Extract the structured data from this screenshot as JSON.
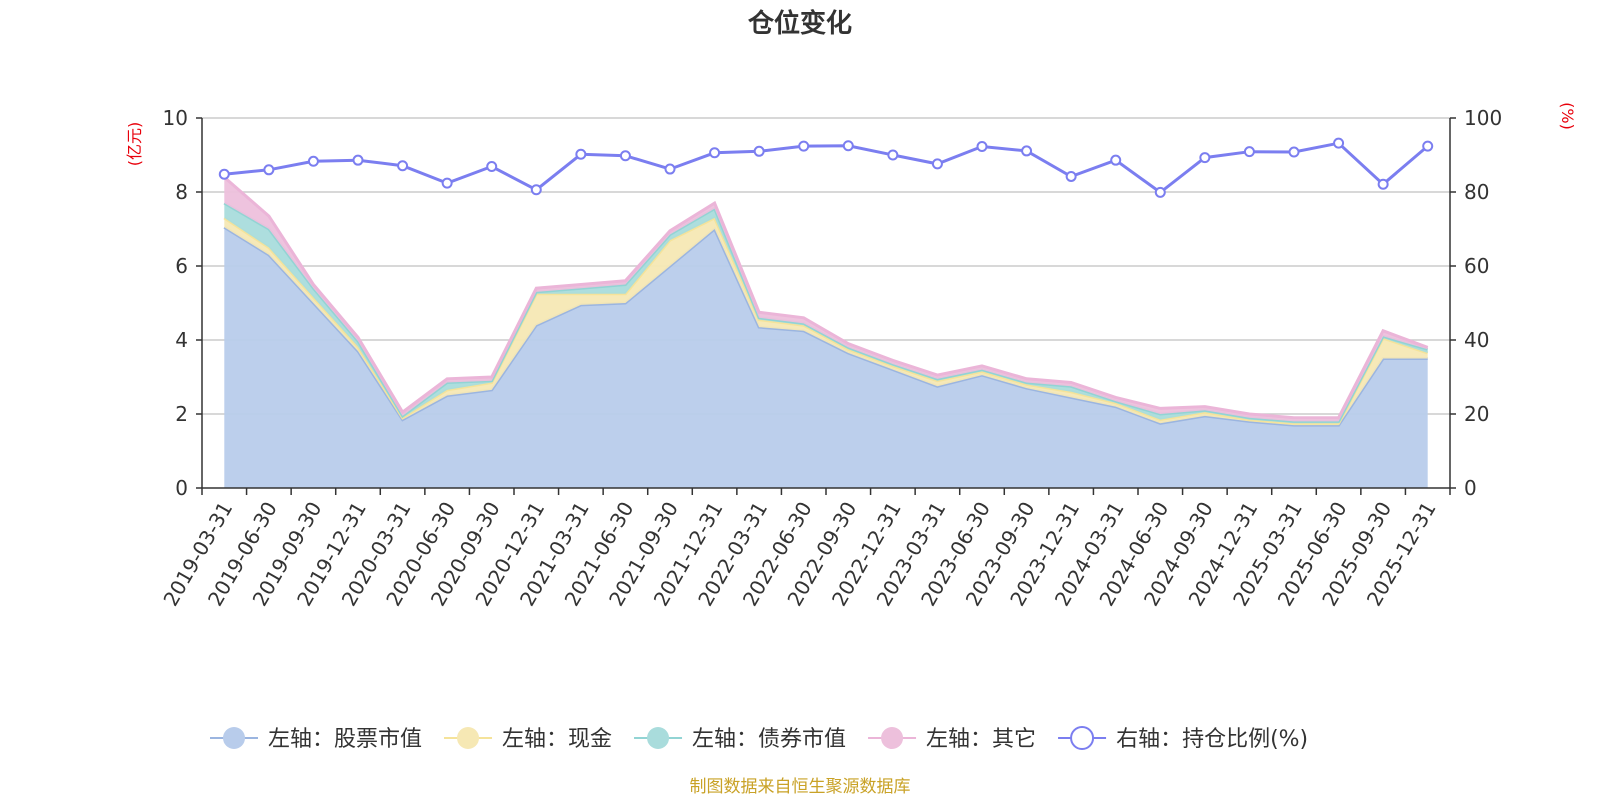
{
  "chart_data": {
    "type": "area",
    "title": "仓位变化",
    "left_unit": "(亿元)",
    "right_unit": "(%)",
    "source": "制图数据来自恒生聚源数据库",
    "left_ylim": [
      0,
      10
    ],
    "left_ticks": [
      "0",
      "2",
      "4",
      "6",
      "8",
      "10"
    ],
    "right_ylim": [
      0,
      100
    ],
    "right_ticks": [
      "0",
      "20",
      "40",
      "60",
      "80",
      "100"
    ],
    "categories": [
      "2019-03-31",
      "2019-06-30",
      "2019-09-30",
      "2019-12-31",
      "2020-03-31",
      "2020-06-30",
      "2020-09-30",
      "2020-12-31",
      "2021-03-31",
      "2021-06-30",
      "2021-09-30",
      "2021-12-31",
      "2022-03-31",
      "2022-06-30",
      "2022-09-30",
      "2022-12-31",
      "2023-03-31",
      "2023-06-30",
      "2023-09-30",
      "2023-12-31",
      "2024-03-31",
      "2024-06-30",
      "2024-09-30",
      "2024-12-31",
      "2025-03-31",
      "2025-06-30",
      "2025-09-30",
      "2025-12-31"
    ],
    "stacked_series": [
      {
        "name": "左轴：股票市值",
        "color": "#9bb5e0",
        "fill": "#b8cceb",
        "values": [
          7.05,
          6.3,
          5.0,
          3.7,
          1.85,
          2.5,
          2.65,
          4.4,
          4.95,
          5.0,
          6.0,
          7.0,
          4.35,
          4.25,
          3.65,
          3.2,
          2.75,
          3.05,
          2.7,
          2.45,
          2.2,
          1.75,
          1.95,
          1.8,
          1.7,
          1.7,
          3.5,
          3.5
        ]
      },
      {
        "name": "左轴：现金",
        "color": "#f5e39a",
        "fill": "#f6e8b4",
        "values": [
          0.25,
          0.2,
          0.15,
          0.12,
          0.05,
          0.15,
          0.2,
          0.85,
          0.3,
          0.25,
          0.7,
          0.3,
          0.2,
          0.15,
          0.1,
          0.1,
          0.15,
          0.1,
          0.1,
          0.15,
          0.1,
          0.1,
          0.1,
          0.05,
          0.05,
          0.05,
          0.55,
          0.15
        ]
      },
      {
        "name": "左轴：债券市值",
        "color": "#92d4d4",
        "fill": "#a9dcdc",
        "values": [
          0.4,
          0.5,
          0.25,
          0.15,
          0.05,
          0.2,
          0.05,
          0.05,
          0.15,
          0.25,
          0.15,
          0.25,
          0.05,
          0.05,
          0.05,
          0.05,
          0.05,
          0.05,
          0.05,
          0.15,
          0.05,
          0.15,
          0.05,
          0.05,
          0.05,
          0.05,
          0.05,
          0.1
        ]
      },
      {
        "name": "左轴：其它",
        "color": "#ebb5d8",
        "fill": "#edc0dc",
        "values": [
          0.7,
          0.35,
          0.1,
          0.1,
          0.1,
          0.1,
          0.1,
          0.1,
          0.1,
          0.1,
          0.1,
          0.15,
          0.15,
          0.15,
          0.1,
          0.1,
          0.1,
          0.1,
          0.1,
          0.1,
          0.1,
          0.15,
          0.1,
          0.1,
          0.1,
          0.1,
          0.15,
          0.05
        ]
      }
    ],
    "line_series": {
      "name": "右轴：持仓比例(%)",
      "color": "#7b7ef0",
      "values": [
        84.8,
        86.0,
        88.3,
        88.6,
        87.1,
        82.4,
        86.9,
        80.6,
        90.2,
        89.8,
        86.2,
        90.6,
        91.0,
        92.4,
        92.5,
        90.0,
        87.6,
        92.3,
        91.1,
        84.2,
        88.6,
        79.9,
        89.3,
        90.9,
        90.8,
        93.2,
        82.1,
        92.4
      ]
    }
  }
}
